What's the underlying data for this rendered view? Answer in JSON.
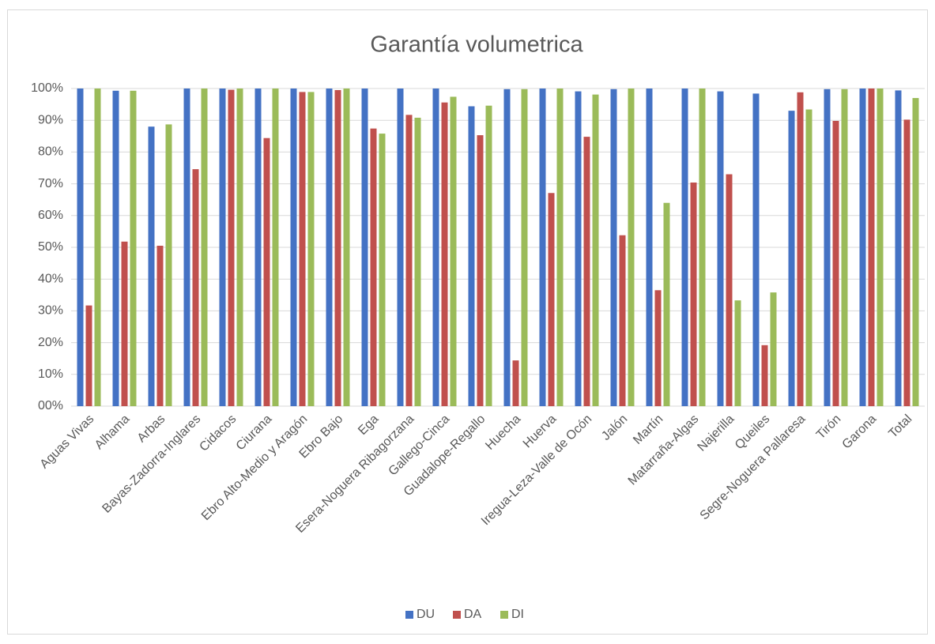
{
  "chart_data": {
    "type": "bar",
    "title": "Garantía volumetrica",
    "categories": [
      "Aguas Vivas",
      "Alhama",
      "Arbas",
      "Bayas-Zadorra-Inglares",
      "Cidacos",
      "Ciurana",
      "Ebro Alto-Medio y Aragón",
      "Ebro Bajo",
      "Ega",
      "Esera-Noguera Ribagorzana",
      "Gallego-Cinca",
      "Guadalope-Regallo",
      "Huecha",
      "Huerva",
      "Iregua-Leza-Valle de Ocón",
      "Jalón",
      "Martín",
      "Matarraña-Algas",
      "Najerilla",
      "Queiles",
      "Segre-Noguera Pallaresa",
      "Tirón",
      "Garona",
      "Total"
    ],
    "series": [
      {
        "name": "DU",
        "color": "#4472c4",
        "values": [
          100,
          99.3,
          88,
          100,
          100,
          100,
          100,
          100,
          100,
          100,
          100,
          94.4,
          99.8,
          100,
          99.1,
          99.8,
          100,
          100,
          99.1,
          98.4,
          93,
          99.8,
          100,
          99.4
        ]
      },
      {
        "name": "DA",
        "color": "#c0504d",
        "values": [
          31.7,
          51.8,
          50.5,
          74.6,
          99.6,
          84.4,
          98.9,
          99.5,
          87.4,
          91.7,
          95.6,
          85.3,
          14.4,
          67.1,
          84.8,
          53.8,
          36.5,
          70.4,
          73,
          19.2,
          98.8,
          89.8,
          100,
          90.2
        ]
      },
      {
        "name": "DI",
        "color": "#9bbb59",
        "values": [
          100,
          99.3,
          88.7,
          100,
          100,
          100,
          98.9,
          100,
          85.8,
          90.8,
          97.4,
          94.6,
          99.8,
          100,
          98.1,
          100,
          64,
          100,
          33.3,
          35.8,
          93.4,
          99.8,
          100,
          97
        ]
      }
    ],
    "ylim": [
      0,
      100
    ],
    "yticks": [
      {
        "value": 0,
        "label": "00%"
      },
      {
        "value": 10,
        "label": "10%"
      },
      {
        "value": 20,
        "label": "20%"
      },
      {
        "value": 30,
        "label": "30%"
      },
      {
        "value": 40,
        "label": "40%"
      },
      {
        "value": 50,
        "label": "50%"
      },
      {
        "value": 60,
        "label": "60%"
      },
      {
        "value": 70,
        "label": "70%"
      },
      {
        "value": 80,
        "label": "80%"
      },
      {
        "value": 90,
        "label": "90%"
      },
      {
        "value": 100,
        "label": "100%"
      }
    ],
    "grid": true,
    "legend": "bottom"
  }
}
